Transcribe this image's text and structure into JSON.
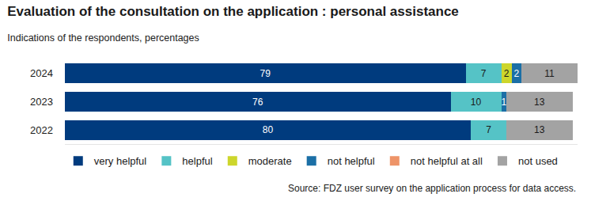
{
  "chart_data": {
    "type": "bar",
    "orientation": "horizontal",
    "stacked": true,
    "data_labels": true,
    "tick_labels": "y",
    "grid": false,
    "legend": "bottom",
    "title": "Evaluation of the consultation on the application : personal assistance",
    "subtitle": "Indications of the respondents, percentages",
    "annotations": [
      "Source: FDZ user survey on the application process for data access."
    ],
    "categories": [
      "2024",
      "2023",
      "2022"
    ],
    "xlim": [
      0,
      101
    ],
    "series": [
      {
        "name": "very helpful",
        "color": "#003b7e",
        "values": [
          79,
          76,
          80
        ]
      },
      {
        "name": "helpful",
        "color": "#55c3c6",
        "values": [
          7,
          10,
          7
        ]
      },
      {
        "name": "moderate",
        "color": "#cdd62c",
        "values": [
          2,
          0,
          0
        ]
      },
      {
        "name": "not helpful",
        "color": "#1b6fa6",
        "values": [
          2,
          1,
          0
        ]
      },
      {
        "name": "not helpful at all",
        "color": "#ee9468",
        "values": [
          0,
          0,
          0
        ]
      },
      {
        "name": "not used",
        "color": "#a3a3a3",
        "values": [
          11,
          13,
          13
        ]
      }
    ]
  }
}
